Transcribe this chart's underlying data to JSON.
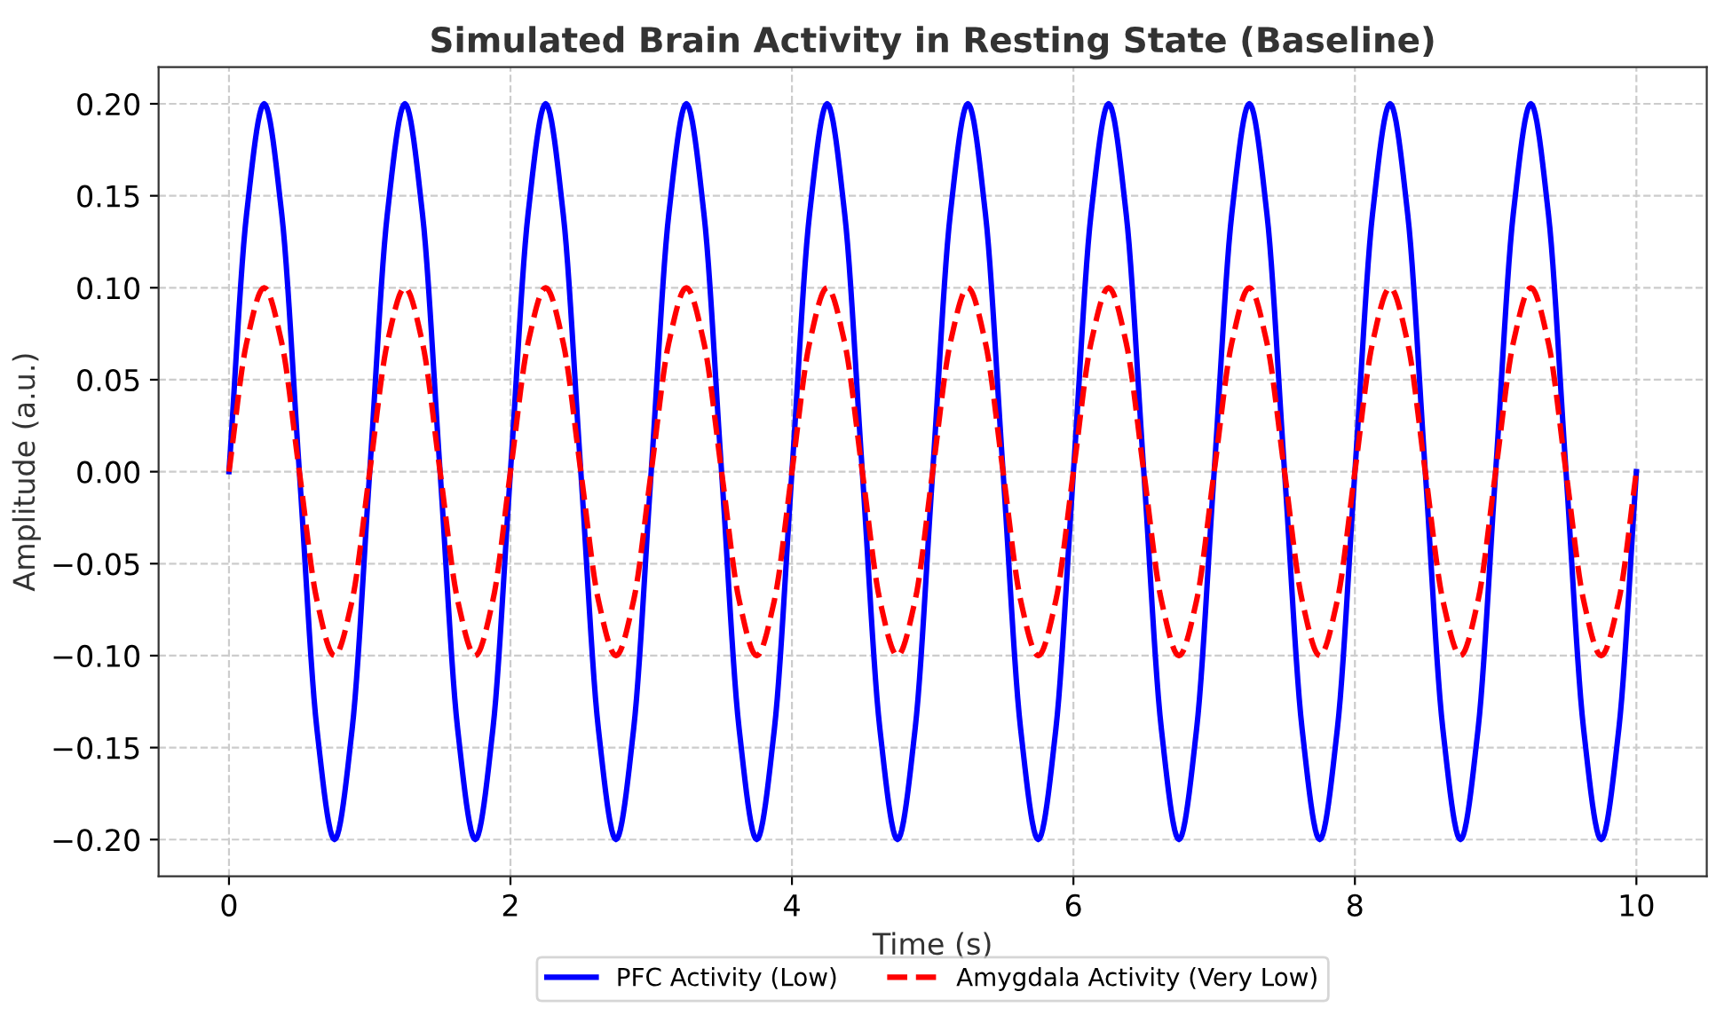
{
  "chart_data": {
    "type": "line",
    "title": "Simulated Brain Activity in Resting State (Baseline)",
    "xlabel": "Time (s)",
    "ylabel": "Amplitude (a.u.)",
    "x": [
      0,
      0.125,
      0.25,
      0.375,
      0.5,
      0.625,
      0.75,
      0.875,
      1,
      1.125,
      1.25,
      1.375,
      1.5,
      1.625,
      1.75,
      1.875,
      2,
      2.125,
      2.25,
      2.375,
      2.5,
      2.625,
      2.75,
      2.875,
      3,
      3.125,
      3.25,
      3.375,
      3.5,
      3.625,
      3.75,
      3.875,
      4,
      4.125,
      4.25,
      4.375,
      4.5,
      4.625,
      4.75,
      4.875,
      5,
      5.125,
      5.25,
      5.375,
      5.5,
      5.625,
      5.75,
      5.875,
      6,
      6.125,
      6.25,
      6.375,
      6.5,
      6.625,
      6.75,
      6.875,
      7,
      7.125,
      7.25,
      7.375,
      7.5,
      7.625,
      7.75,
      7.875,
      8,
      8.125,
      8.25,
      8.375,
      8.5,
      8.625,
      8.75,
      8.875,
      9,
      9.125,
      9.25,
      9.375,
      9.5,
      9.625,
      9.75,
      9.875,
      10
    ],
    "series": [
      {
        "name": "PFC Activity (Low)",
        "color": "#0000ff",
        "line_style": "solid",
        "values": [
          0,
          0.14,
          0.2,
          0.14,
          0,
          -0.14,
          -0.2,
          -0.14,
          0,
          0.14,
          0.2,
          0.14,
          0,
          -0.14,
          -0.2,
          -0.14,
          0,
          0.14,
          0.2,
          0.14,
          0,
          -0.14,
          -0.2,
          -0.14,
          0,
          0.14,
          0.2,
          0.14,
          0,
          -0.14,
          -0.2,
          -0.14,
          0,
          0.14,
          0.2,
          0.14,
          0,
          -0.14,
          -0.2,
          -0.14,
          0,
          0.14,
          0.2,
          0.14,
          0,
          -0.14,
          -0.2,
          -0.14,
          0,
          0.14,
          0.2,
          0.14,
          0,
          -0.14,
          -0.2,
          -0.14,
          0,
          0.14,
          0.2,
          0.14,
          0,
          -0.14,
          -0.2,
          -0.14,
          0,
          0.14,
          0.2,
          0.14,
          0,
          -0.14,
          -0.2,
          -0.14,
          0,
          0.14,
          0.2,
          0.14,
          0,
          -0.14,
          -0.2,
          -0.14,
          0
        ]
      },
      {
        "name": "Amygdala Activity (Very Low)",
        "color": "#ff0000",
        "line_style": "dashed",
        "values": [
          0,
          0.07,
          0.1,
          0.07,
          0,
          -0.07,
          -0.1,
          -0.07,
          0,
          0.07,
          0.1,
          0.07,
          0,
          -0.07,
          -0.1,
          -0.07,
          0,
          0.07,
          0.1,
          0.07,
          0,
          -0.07,
          -0.1,
          -0.07,
          0,
          0.07,
          0.1,
          0.07,
          0,
          -0.07,
          -0.1,
          -0.07,
          0,
          0.07,
          0.1,
          0.07,
          0,
          -0.07,
          -0.1,
          -0.07,
          0,
          0.07,
          0.1,
          0.07,
          0,
          -0.07,
          -0.1,
          -0.07,
          0,
          0.07,
          0.1,
          0.07,
          0,
          -0.07,
          -0.1,
          -0.07,
          0,
          0.07,
          0.1,
          0.07,
          0,
          -0.07,
          -0.1,
          -0.07,
          0,
          0.07,
          0.1,
          0.07,
          0,
          -0.07,
          -0.1,
          -0.07,
          0,
          0.07,
          0.1,
          0.07,
          0,
          -0.07,
          -0.1,
          -0.07,
          0
        ]
      }
    ],
    "xlim": [
      -0.5,
      10.5
    ],
    "xticks": [
      0,
      2,
      4,
      6,
      8,
      10
    ],
    "ylim": [
      -0.22,
      0.22
    ],
    "yticks": [
      {
        "value": -0.2,
        "label": "−0.20"
      },
      {
        "value": -0.15,
        "label": "−0.15"
      },
      {
        "value": -0.1,
        "label": "−0.10"
      },
      {
        "value": -0.05,
        "label": "−0.05"
      },
      {
        "value": 0,
        "label": "0.00"
      },
      {
        "value": 0.05,
        "label": "0.05"
      },
      {
        "value": 0.1,
        "label": "0.10"
      },
      {
        "value": 0.15,
        "label": "0.15"
      },
      {
        "value": 0.2,
        "label": "0.20"
      }
    ],
    "grid": true,
    "legend": "bottom",
    "marker": "none"
  }
}
